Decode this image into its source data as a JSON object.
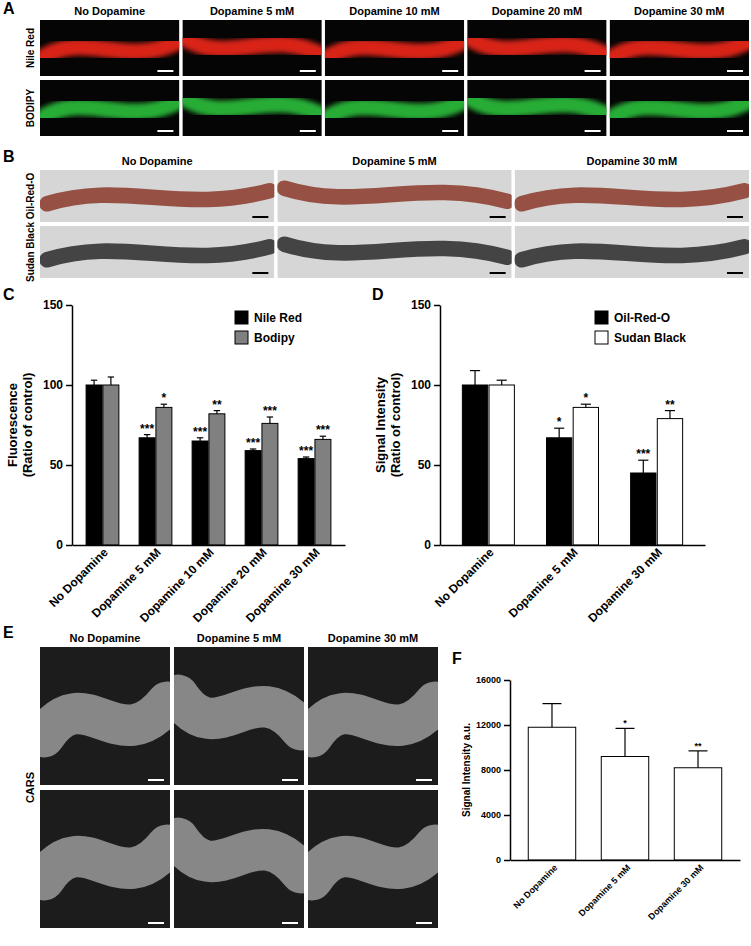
{
  "chart_data": [
    {
      "type": "bar",
      "title": "C",
      "categories": [
        "No Dopamine",
        "Dopamine 5 mM",
        "Dopamine 10 mM",
        "Dopamine 20 mM",
        "Dopamine 30 mM"
      ],
      "series": [
        {
          "name": "Nile Red",
          "color": "#000000",
          "values": [
            100,
            67,
            65,
            59,
            54
          ],
          "errors": [
            3,
            2,
            2,
            1,
            1
          ],
          "significance": [
            null,
            "***",
            "***",
            "***",
            "***"
          ]
        },
        {
          "name": "Bodipy",
          "color": "#808080",
          "values": [
            100,
            86,
            82,
            76,
            66
          ],
          "errors": [
            5,
            2,
            2,
            4,
            2
          ],
          "significance": [
            null,
            "*",
            "**",
            "***",
            "***"
          ]
        }
      ],
      "ylabel": [
        "Fluorescence",
        "(Ratio of control)"
      ],
      "ylim": [
        0,
        150
      ],
      "yticks": [
        0,
        50,
        100,
        150
      ],
      "grid": false,
      "legend": "top-right"
    },
    {
      "type": "bar",
      "title": "D",
      "categories": [
        "No Dopamine",
        "Dopamine 5 mM",
        "Dopamine 30 mM"
      ],
      "series": [
        {
          "name": "Oil-Red-O",
          "color": "#000000",
          "values": [
            100,
            67,
            45
          ],
          "errors": [
            9,
            6,
            8
          ],
          "significance": [
            null,
            "*",
            "***"
          ]
        },
        {
          "name": "Sudan Black",
          "color": "#ffffff",
          "values": [
            100,
            86,
            79
          ],
          "errors": [
            3,
            2,
            5
          ],
          "significance": [
            null,
            "*",
            "**"
          ]
        }
      ],
      "ylabel": [
        "Signal Intensity",
        "(Ratio of control)"
      ],
      "ylim": [
        0,
        150
      ],
      "yticks": [
        0,
        50,
        100,
        150
      ],
      "grid": false,
      "legend": "top-right"
    },
    {
      "type": "bar",
      "title": "F",
      "categories": [
        "No Dopamine",
        "Dopamine 5 mM",
        "Dopamine 30 mM"
      ],
      "values": [
        11800,
        9200,
        8200
      ],
      "errors": [
        2100,
        2500,
        1500
      ],
      "significance": [
        null,
        "*",
        "**"
      ],
      "color": "#ffffff",
      "ylabel": [
        "Signal Intensity a.u."
      ],
      "ylim": [
        0,
        16000
      ],
      "yticks": [
        0,
        4000,
        8000,
        12000,
        16000
      ],
      "grid": false
    }
  ],
  "image_panels": [
    {
      "title": "A",
      "background": "#050505",
      "columns": [
        "No Dopamine",
        "Dopamine 5 mM",
        "Dopamine 10 mM",
        "Dopamine 20 mM",
        "Dopamine 30 mM"
      ],
      "rows": [
        {
          "label": "Nile Red",
          "color": "#ff2a1a"
        },
        {
          "label": "BODIPY",
          "color": "#2ecc40"
        }
      ]
    },
    {
      "title": "B",
      "background": "#d6d6d6",
      "columns": [
        "No Dopamine",
        "Dopamine 5 mM",
        "Dopamine 30 mM"
      ],
      "rows": [
        {
          "label": "Oil-Red-O",
          "color": "#8b3a2a"
        },
        {
          "label": "Sudan Black",
          "color": "#2a2a2a"
        }
      ]
    },
    {
      "title": "E",
      "background": "#1c1c1c",
      "columns": [
        "No Dopamine",
        "Dopamine 5 mM",
        "Dopamine 30 mM"
      ],
      "rows": [
        {
          "label": "CARS",
          "color": "#9a9a9a"
        }
      ]
    }
  ]
}
